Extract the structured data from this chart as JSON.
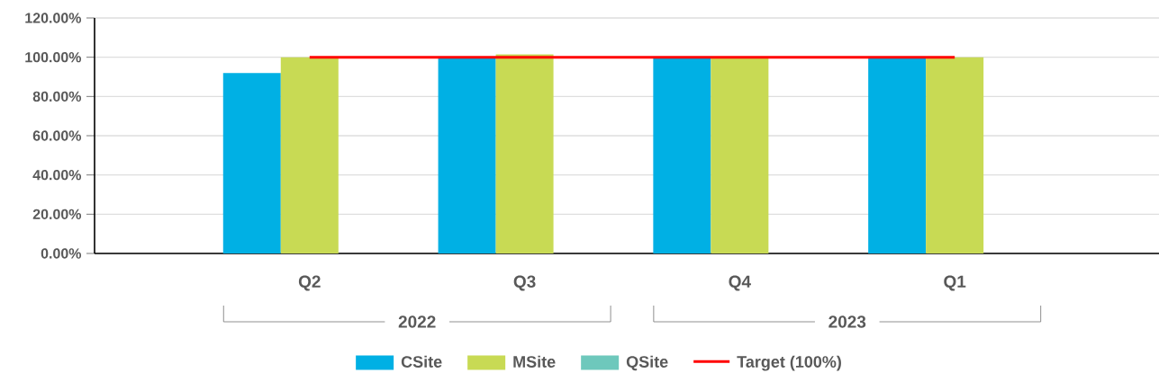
{
  "chart_data": {
    "type": "bar",
    "categories": [
      "Q2",
      "Q3",
      "Q4",
      "Q1"
    ],
    "series": [
      {
        "name": "CSite",
        "color": "#00b0e4",
        "values": [
          92,
          100,
          100,
          100
        ]
      },
      {
        "name": "MSite",
        "color": "#c8da54",
        "values": [
          100,
          101.5,
          100,
          100
        ]
      },
      {
        "name": "QSite",
        "color": "#6ec8bc",
        "values": [
          null,
          null,
          null,
          null
        ]
      },
      {
        "name": "Target (100%)",
        "type": "line",
        "color": "#ff0000",
        "values": [
          100,
          100,
          100,
          100
        ]
      }
    ],
    "ylim": [
      0,
      120
    ],
    "yticks": [
      {
        "value": 0,
        "label": "0.00%"
      },
      {
        "value": 20,
        "label": "20.00%"
      },
      {
        "value": 40,
        "label": "40.00%"
      },
      {
        "value": 60,
        "label": "60.00%"
      },
      {
        "value": 80,
        "label": "80.00%"
      },
      {
        "value": 100,
        "label": "100.00%"
      },
      {
        "value": 120,
        "label": "120.00%"
      }
    ],
    "annotations": [
      "2022",
      "2023"
    ],
    "grid": "y",
    "legend": "bottom"
  }
}
